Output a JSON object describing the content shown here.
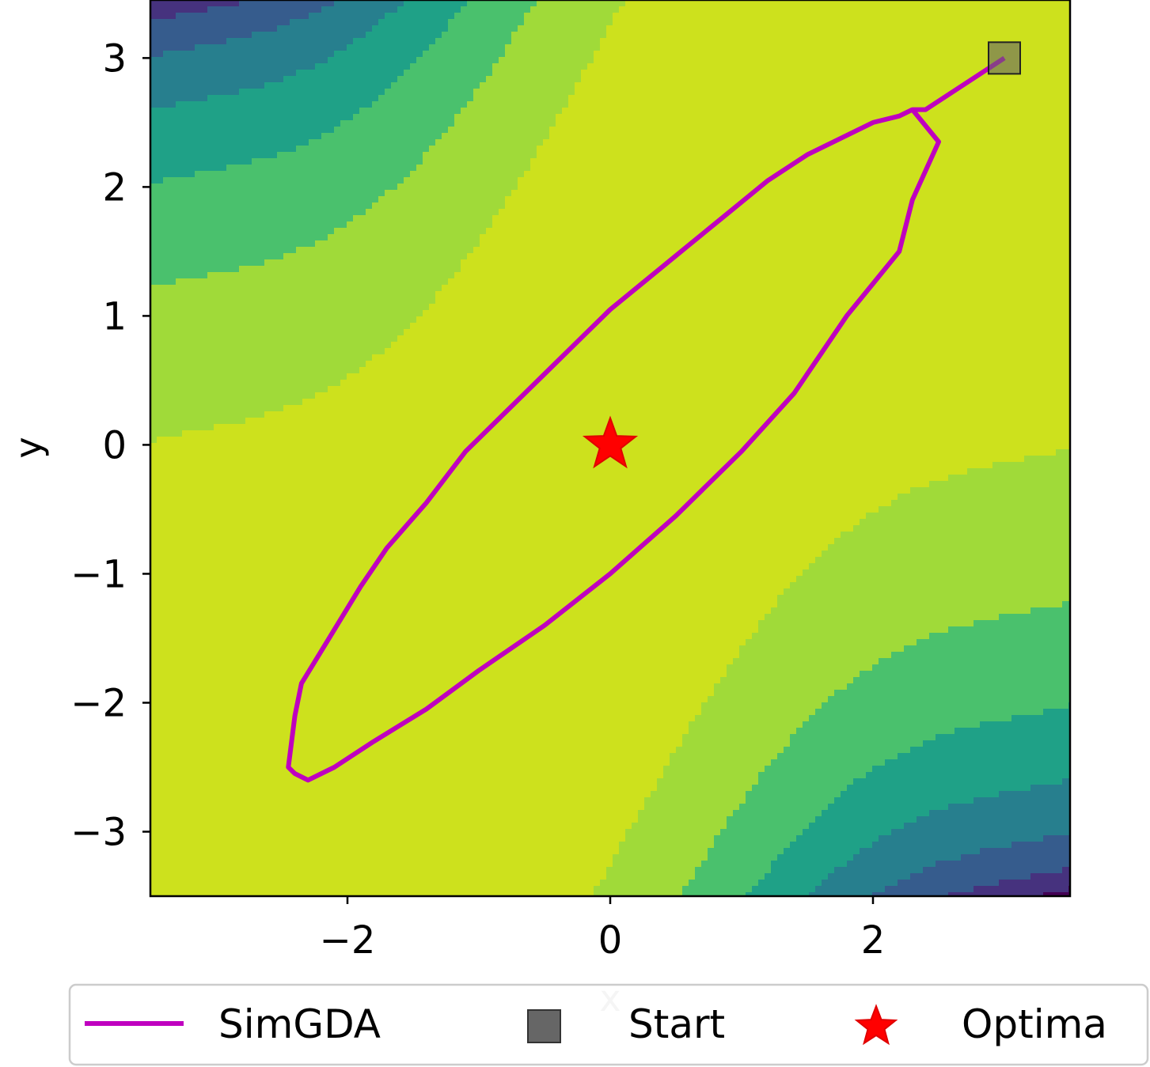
{
  "chart_data": {
    "type": "contour",
    "title": "",
    "xlabel": "x",
    "ylabel": "y",
    "xlim": [
      -3.5,
      3.5
    ],
    "ylim": [
      -3.5,
      3.45
    ],
    "xticks": [
      -2,
      0,
      2
    ],
    "xtick_labels": [
      "−2",
      "0",
      "2"
    ],
    "yticks": [
      -3,
      -2,
      -1,
      0,
      1,
      2,
      3
    ],
    "ytick_labels": [
      "−3",
      "−2",
      "−1",
      "0",
      "1",
      "2",
      "3"
    ],
    "grid": false,
    "colormap": "viridis",
    "contour_levels": 8,
    "contour_colors": [
      "#440154",
      "#46327e",
      "#365c8d",
      "#277f8e",
      "#1fa187",
      "#4ac16d",
      "#a0da39",
      "#cde11d"
    ],
    "series": [
      {
        "name": "SimGDA",
        "type": "line",
        "color": "#bf00bf",
        "x": [
          3.0,
          2.7,
          2.4,
          2.3,
          2.5,
          2.3,
          2.2,
          1.8,
          1.4,
          1.0,
          0.5,
          0.0,
          -0.5,
          -1.0,
          -1.4,
          -1.8,
          -2.1,
          -2.3,
          -2.4,
          -2.45,
          -2.4,
          -2.35,
          -2.2,
          -1.9,
          -1.7,
          -1.4,
          -1.1,
          -0.8,
          -0.5,
          -0.2,
          0.0,
          0.3,
          0.6,
          0.9,
          1.2,
          1.5,
          1.8,
          2.0,
          2.2,
          2.3
        ],
        "y": [
          3.0,
          2.8,
          2.6,
          2.6,
          2.35,
          1.9,
          1.5,
          1.0,
          0.4,
          -0.05,
          -0.55,
          -1.0,
          -1.4,
          -1.75,
          -2.05,
          -2.3,
          -2.5,
          -2.6,
          -2.55,
          -2.5,
          -2.1,
          -1.85,
          -1.6,
          -1.1,
          -0.8,
          -0.45,
          -0.05,
          0.25,
          0.55,
          0.85,
          1.05,
          1.3,
          1.55,
          1.8,
          2.05,
          2.25,
          2.4,
          2.5,
          2.55,
          2.6
        ]
      },
      {
        "name": "Start",
        "type": "marker",
        "marker": "square",
        "color": "#666666",
        "x": [
          3.0
        ],
        "y": [
          3.0
        ]
      },
      {
        "name": "Optima",
        "type": "marker",
        "marker": "star",
        "color": "#ff0000",
        "x": [
          0.0
        ],
        "y": [
          0.0
        ]
      }
    ],
    "legend": {
      "placement": "bottom",
      "entries": [
        "SimGDA",
        "Start",
        "Optima"
      ]
    }
  }
}
